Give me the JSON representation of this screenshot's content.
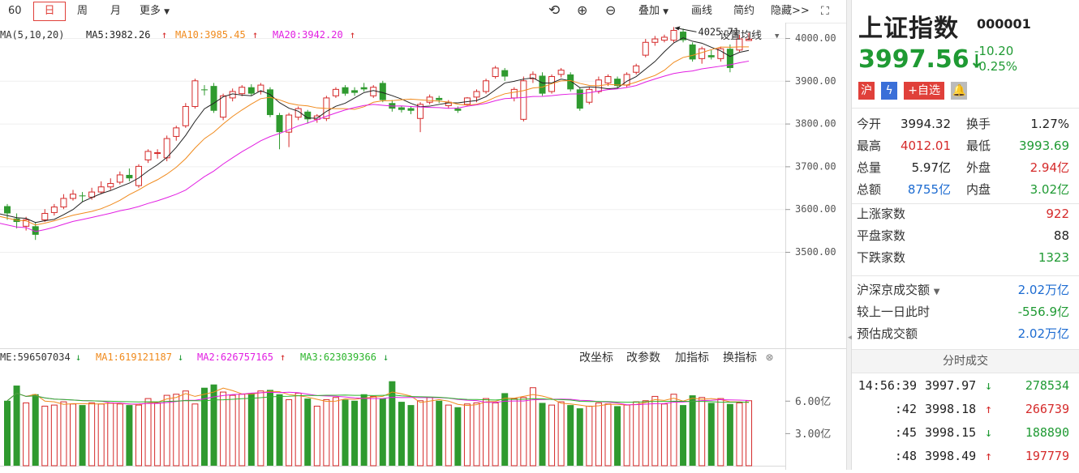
{
  "toolbar": {
    "periods": [
      "60",
      "日",
      "周",
      "月"
    ],
    "more": "更多",
    "tools": [
      "叠加",
      "画线",
      "简约",
      "隐藏>>"
    ]
  },
  "ma_legend": {
    "label": "MA(5,10,20)",
    "ma5": "MA5:3982.26",
    "ma10": "MA10:3985.45",
    "ma20": "MA20:3942.20",
    "settings": "设置均线",
    "colors": {
      "ma5": "#222222",
      "ma10": "#f08a1c",
      "ma20": "#e21ee2"
    }
  },
  "price_axis": {
    "ticks": [
      {
        "value": 4000,
        "label": "4000.00"
      },
      {
        "value": 3900,
        "label": "3900.00"
      },
      {
        "value": 3800,
        "label": "3800.00"
      },
      {
        "value": 3700,
        "label": "3700.00"
      },
      {
        "value": 3600,
        "label": "3600.00"
      },
      {
        "value": 3500,
        "label": "3500.00"
      }
    ],
    "high_marker": "4025.71"
  },
  "vol_legend": {
    "vol": "ME:596507034",
    "ma1": "MA1:619121187",
    "ma2": "MA2:626757165",
    "ma3": "MA3:623039366",
    "colors": {
      "ma1": "#f08a1c",
      "ma2": "#e21ee2",
      "ma3": "#2bb52b"
    },
    "actions": [
      "改坐标",
      "改参数",
      "加指标",
      "换指标"
    ],
    "ticks": [
      {
        "value": 6.0,
        "label": "6.00亿"
      },
      {
        "value": 3.0,
        "label": "3.00亿"
      }
    ]
  },
  "chart_data": {
    "type": "candlestick",
    "candles": [
      [
        3607,
        3590,
        3612,
        3575
      ],
      [
        3578,
        3570,
        3590,
        3555
      ],
      [
        3560,
        3575,
        3582,
        3550
      ],
      [
        3560,
        3540,
        3570,
        3528
      ],
      [
        3575,
        3590,
        3600,
        3570
      ],
      [
        3592,
        3605,
        3612,
        3585
      ],
      [
        3605,
        3625,
        3635,
        3600
      ],
      [
        3625,
        3635,
        3645,
        3620
      ],
      [
        3632,
        3630,
        3640,
        3618
      ],
      [
        3628,
        3640,
        3650,
        3622
      ],
      [
        3640,
        3652,
        3665,
        3635
      ],
      [
        3652,
        3660,
        3672,
        3645
      ],
      [
        3663,
        3680,
        3688,
        3658
      ],
      [
        3680,
        3672,
        3695,
        3665
      ],
      [
        3655,
        3700,
        3705,
        3650
      ],
      [
        3715,
        3735,
        3740,
        3708
      ],
      [
        3730,
        3732,
        3740,
        3718
      ],
      [
        3720,
        3765,
        3772,
        3712
      ],
      [
        3770,
        3790,
        3795,
        3760
      ],
      [
        3795,
        3840,
        3848,
        3790
      ],
      [
        3840,
        3900,
        3905,
        3835
      ],
      [
        3880,
        3878,
        3890,
        3866
      ],
      [
        3888,
        3830,
        3895,
        3825
      ],
      [
        3815,
        3865,
        3870,
        3808
      ],
      [
        3860,
        3875,
        3882,
        3852
      ],
      [
        3870,
        3885,
        3890,
        3864
      ],
      [
        3885,
        3870,
        3892,
        3865
      ],
      [
        3875,
        3890,
        3895,
        3868
      ],
      [
        3880,
        3820,
        3885,
        3815
      ],
      [
        3820,
        3780,
        3825,
        3740
      ],
      [
        3780,
        3820,
        3825,
        3745
      ],
      [
        3815,
        3835,
        3840,
        3808
      ],
      [
        3828,
        3810,
        3832,
        3800
      ],
      [
        3810,
        3818,
        3822,
        3802
      ],
      [
        3812,
        3860,
        3865,
        3806
      ],
      [
        3865,
        3880,
        3885,
        3860
      ],
      [
        3885,
        3870,
        3890,
        3865
      ],
      [
        3878,
        3872,
        3885,
        3865
      ],
      [
        3885,
        3880,
        3895,
        3875
      ],
      [
        3865,
        3885,
        3890,
        3860
      ],
      [
        3895,
        3855,
        3900,
        3850
      ],
      [
        3848,
        3835,
        3855,
        3828
      ],
      [
        3838,
        3832,
        3842,
        3826
      ],
      [
        3836,
        3830,
        3840,
        3822
      ],
      [
        3812,
        3845,
        3850,
        3780
      ],
      [
        3850,
        3862,
        3868,
        3845
      ],
      [
        3860,
        3855,
        3865,
        3848
      ],
      [
        3842,
        3850,
        3855,
        3835
      ],
      [
        3835,
        3830,
        3840,
        3825
      ],
      [
        3845,
        3860,
        3862,
        3842
      ],
      [
        3862,
        3875,
        3880,
        3850
      ],
      [
        3875,
        3900,
        3905,
        3870
      ],
      [
        3910,
        3930,
        3935,
        3905
      ],
      [
        3925,
        3910,
        3930,
        3900
      ],
      [
        3860,
        3880,
        3885,
        3852
      ],
      [
        3810,
        3900,
        3910,
        3805
      ],
      [
        3905,
        3915,
        3922,
        3895
      ],
      [
        3912,
        3870,
        3920,
        3865
      ],
      [
        3875,
        3910,
        3915,
        3870
      ],
      [
        3915,
        3925,
        3930,
        3908
      ],
      [
        3915,
        3880,
        3920,
        3875
      ],
      [
        3880,
        3835,
        3885,
        3830
      ],
      [
        3850,
        3880,
        3885,
        3845
      ],
      [
        3875,
        3902,
        3910,
        3870
      ],
      [
        3895,
        3910,
        3915,
        3888
      ],
      [
        3905,
        3888,
        3910,
        3882
      ],
      [
        3890,
        3915,
        3920,
        3885
      ],
      [
        3920,
        3935,
        3940,
        3915
      ],
      [
        3960,
        3990,
        3998,
        3955
      ],
      [
        3990,
        3998,
        4005,
        3982
      ],
      [
        3995,
        4002,
        4008,
        3990
      ],
      [
        3995,
        4018,
        4025.71,
        3990
      ],
      [
        4015,
        3995,
        4022,
        3990
      ],
      [
        3985,
        3950,
        3990,
        3945
      ],
      [
        3952,
        3975,
        3980,
        3940
      ],
      [
        3960,
        3955,
        3972,
        3950
      ],
      [
        3952,
        3975,
        3980,
        3945
      ],
      [
        3975,
        3930,
        3985,
        3920
      ],
      [
        3972,
        3998,
        4008,
        3968
      ],
      [
        3994.32,
        3997.56,
        4012.01,
        3993.69
      ]
    ],
    "volume_yi": [
      6.0,
      7.4,
      5.8,
      6.6,
      5.5,
      5.6,
      5.9,
      5.7,
      5.6,
      5.8,
      5.7,
      5.8,
      5.7,
      5.6,
      5.6,
      6.2,
      5.8,
      6.5,
      6.6,
      6.9,
      5.7,
      7.2,
      7.5,
      6.8,
      6.5,
      6.6,
      6.7,
      6.9,
      7.0,
      6.6,
      6.1,
      6.7,
      6.2,
      5.5,
      6.1,
      6.3,
      6.1,
      6.0,
      6.6,
      6.4,
      6.2,
      7.8,
      5.9,
      5.6,
      6.0,
      6.3,
      6.0,
      5.6,
      5.4,
      5.7,
      5.8,
      6.2,
      5.8,
      6.7,
      6.2,
      6.3,
      7.2,
      5.8,
      5.6,
      5.9,
      5.6,
      5.3,
      5.5,
      5.8,
      5.7,
      5.5,
      5.6,
      5.9,
      6.0,
      6.4,
      5.7,
      6.6,
      5.6,
      6.5,
      6.3,
      5.8,
      6.2,
      5.7,
      5.8,
      6.0
    ],
    "price_range": [
      3450,
      4050
    ],
    "volume_range_yi": [
      0,
      8.6
    ]
  },
  "quote": {
    "name": "上证指数",
    "code": "000001",
    "price": "3997.56",
    "change": "-10.20",
    "change_pct": "-0.25%",
    "tags": [
      "沪",
      "+自选"
    ],
    "fields": [
      {
        "l1": "今开",
        "v1": "3994.32",
        "c1": "dark",
        "l2": "换手",
        "v2": "1.27%",
        "c2": "dark"
      },
      {
        "l1": "最高",
        "v1": "4012.01",
        "c1": "red",
        "l2": "最低",
        "v2": "3993.69",
        "c2": "green"
      },
      {
        "l1": "总量",
        "v1": "5.97亿",
        "c1": "dark",
        "l2": "外盘",
        "v2": "2.94亿",
        "c2": "red"
      },
      {
        "l1": "总额",
        "v1": "8755亿",
        "c1": "blue",
        "l2": "内盘",
        "v2": "3.02亿",
        "c2": "green"
      }
    ],
    "up_label": "上涨家数",
    "up": "922",
    "flat_label": "平盘家数",
    "flat": "88",
    "down_label": "下跌家数",
    "down": "1323",
    "turnover_label": "沪深京成交额",
    "turnover": "2.02万亿",
    "vs_label": "较上一日此时",
    "vs": "-556.9亿",
    "est_label": "预估成交额",
    "est": "2.02万亿",
    "ticks_title": "分时成交",
    "ticks": [
      {
        "time": "14:56:39",
        "price": "3997.97",
        "dir": "down",
        "vol": "278534"
      },
      {
        "time": ":42",
        "price": "3998.18",
        "dir": "up",
        "vol": "266739"
      },
      {
        "time": ":45",
        "price": "3998.15",
        "dir": "down",
        "vol": "188890"
      },
      {
        "time": ":48",
        "price": "3998.49",
        "dir": "up",
        "vol": "197779"
      }
    ]
  }
}
